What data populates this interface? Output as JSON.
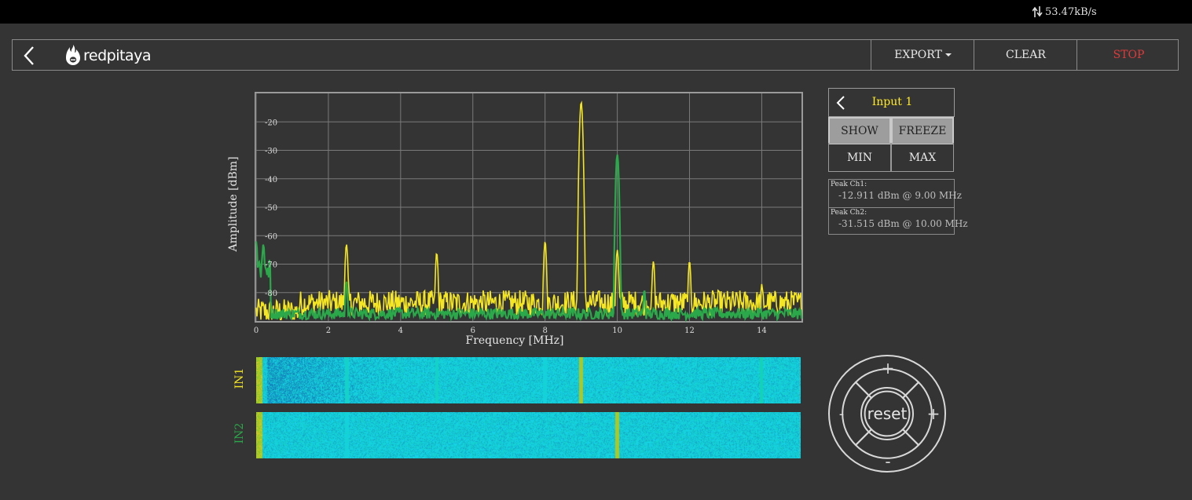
{
  "status_bar": {
    "net_speed": "53.47kB/s"
  },
  "header": {
    "logo_text": "redpitaya",
    "export_label": "EXPORT",
    "clear_label": "CLEAR",
    "stop_label": "STOP"
  },
  "panel": {
    "title": "Input 1",
    "show_label": "SHOW",
    "freeze_label": "FREEZE",
    "min_label": "MIN",
    "max_label": "MAX",
    "peak_ch1_label": "Peak Ch1:",
    "peak_ch1_value": "-12.911  dBm @ 9.00  MHz",
    "peak_ch2_label": "Peak Ch2:",
    "peak_ch2_value": "-31.515  dBm @ 10.00  MHz"
  },
  "waterfall": {
    "in1_label": "IN1",
    "in2_label": "IN2"
  },
  "zoom": {
    "reset_label": "reset",
    "plus": "+",
    "minus": "-"
  },
  "colors": {
    "ch1": "#f5e623",
    "ch2": "#2aa84a",
    "stop": "#e03a3a",
    "title": "#ffea2a"
  },
  "chart_data": {
    "type": "line",
    "xlabel": "Frequency   [MHz]",
    "ylabel": "Amplitude  [dBm]",
    "xlim": [
      0,
      15.1
    ],
    "ylim": [
      -90,
      -10
    ],
    "xticks": [
      0,
      2,
      4,
      6,
      8,
      10,
      12,
      14
    ],
    "yticks": [
      -20,
      -30,
      -40,
      -50,
      -60,
      -70,
      -80
    ],
    "grid": true,
    "noise_floor": {
      "ch1": -85,
      "ch2": -88
    },
    "series": [
      {
        "name": "IN1",
        "color": "#f5e623",
        "peaks": [
          [
            2.5,
            -63
          ],
          [
            5.0,
            -66
          ],
          [
            8.0,
            -62
          ],
          [
            9.0,
            -13
          ],
          [
            10.0,
            -65
          ],
          [
            11.0,
            -69
          ],
          [
            12.0,
            -69
          ],
          [
            14.0,
            -77
          ]
        ]
      },
      {
        "name": "IN2",
        "color": "#2aa84a",
        "peaks": [
          [
            0.0,
            -62
          ],
          [
            0.2,
            -63
          ],
          [
            2.5,
            -76
          ],
          [
            10.0,
            -31.5
          ],
          [
            10.75,
            -79
          ]
        ]
      }
    ]
  }
}
